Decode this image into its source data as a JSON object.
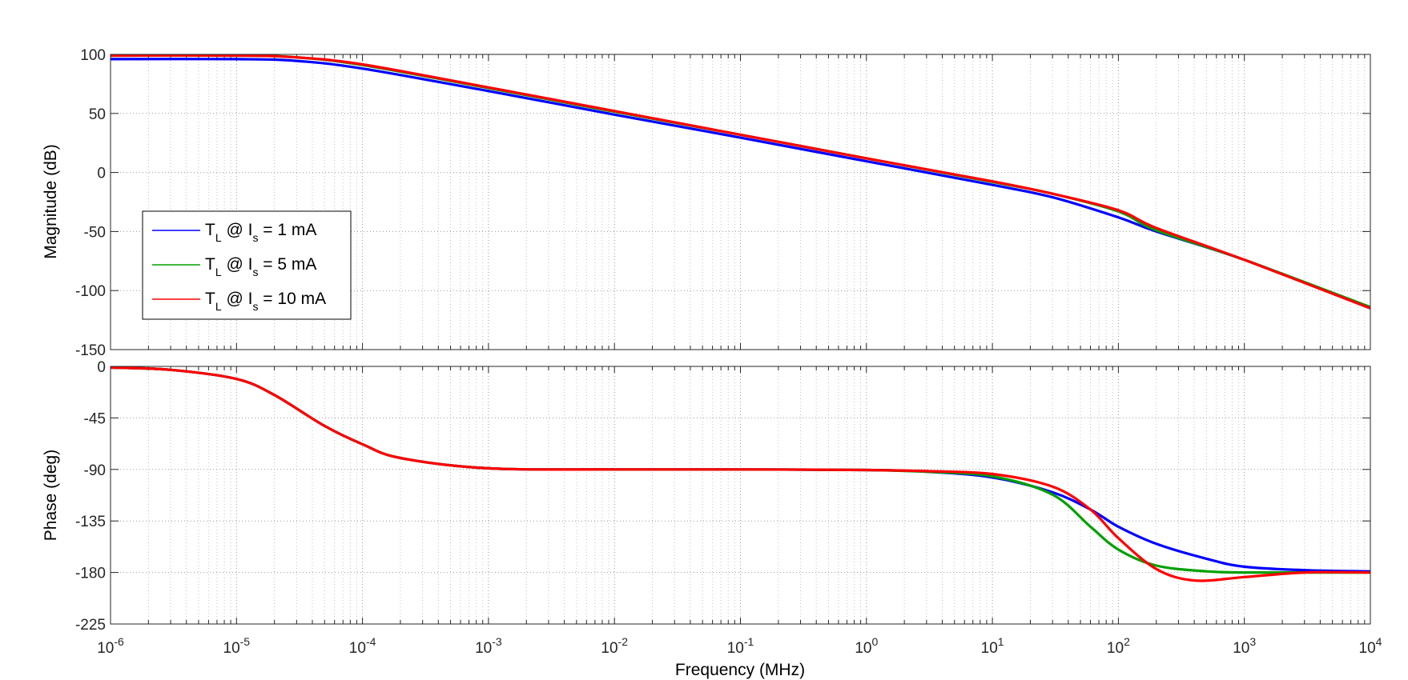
{
  "chart_data": [
    {
      "type": "line",
      "panel": "magnitude",
      "ylabel": "Magnitude (dB)",
      "xlabel": "",
      "xscale": "log",
      "xlim": [
        1e-06,
        10000.0
      ],
      "ylim": [
        -150,
        100
      ],
      "yticks": [
        "100",
        "50",
        "0",
        "-50",
        "-100",
        "-150"
      ],
      "grid": true,
      "legend_position": "left-middle",
      "series": [
        {
          "name": "T_L @ I_s = 1 mA",
          "label_parts": [
            "T",
            "L",
            " @ I",
            "s",
            " = 1 mA"
          ],
          "color": "#0000ff",
          "x": [
            1e-06,
            1e-05,
            3e-05,
            0.0001,
            0.001,
            0.01,
            0.1,
            1,
            10,
            30,
            100,
            200,
            1000,
            10000
          ],
          "y": [
            96,
            96,
            94.5,
            88,
            69,
            49,
            29.5,
            9.5,
            -10.5,
            -21,
            -38,
            -50,
            -74,
            -115
          ]
        },
        {
          "name": "T_L @ I_s = 5 mA",
          "label_parts": [
            "T",
            "L",
            " @ I",
            "s",
            " = 5 mA"
          ],
          "color": "#00a000",
          "x": [
            1e-06,
            1e-05,
            3e-05,
            0.0001,
            0.001,
            0.01,
            0.1,
            1,
            10,
            30,
            100,
            200,
            1000,
            10000
          ],
          "y": [
            99,
            99,
            97.5,
            91,
            71.5,
            51.5,
            32,
            12,
            -8,
            -18,
            -33,
            -49,
            -74,
            -114
          ]
        },
        {
          "name": "T_L @ I_s = 10 mA",
          "label_parts": [
            "T",
            "L",
            " @ I",
            "s",
            " = 10 mA"
          ],
          "color": "#ff0000",
          "x": [
            1e-06,
            1e-05,
            3e-05,
            0.0001,
            0.001,
            0.01,
            0.1,
            1,
            10,
            30,
            100,
            200,
            1000,
            10000
          ],
          "y": [
            99,
            99,
            97.5,
            91.5,
            72,
            52,
            32,
            12,
            -7.5,
            -18,
            -32,
            -47,
            -74,
            -115
          ]
        }
      ]
    },
    {
      "type": "line",
      "panel": "phase",
      "ylabel": "Phase (deg)",
      "xlabel": "Frequency  (MHz)",
      "xscale": "log",
      "xlim": [
        1e-06,
        10000.0
      ],
      "ylim": [
        -225,
        0
      ],
      "yticks": [
        "0",
        "-45",
        "-90",
        "-135",
        "-180",
        "-225"
      ],
      "xticks": [
        "10^-6",
        "10^-5",
        "10^-4",
        "10^-3",
        "10^-2",
        "10^-1",
        "10^0",
        "10^1",
        "10^2",
        "10^3",
        "10^4"
      ],
      "grid": true,
      "series": [
        {
          "name": "T_L @ I_s = 1 mA",
          "color": "#0000ff",
          "x": [
            1e-06,
            3e-06,
            1e-05,
            2e-05,
            5e-05,
            0.0001,
            0.0002,
            0.001,
            0.01,
            0.1,
            1,
            3,
            10,
            30,
            60,
            100,
            200,
            500,
            1000,
            3000,
            10000
          ],
          "y": [
            -1,
            -3,
            -11,
            -25,
            -52,
            -68,
            -80,
            -89,
            -90,
            -90,
            -90.5,
            -92,
            -97,
            -110,
            -125,
            -140,
            -155,
            -168,
            -175,
            -178,
            -179
          ]
        },
        {
          "name": "T_L @ I_s = 5 mA",
          "color": "#00a000",
          "x": [
            1e-06,
            3e-06,
            1e-05,
            2e-05,
            5e-05,
            0.0001,
            0.0002,
            0.001,
            0.01,
            0.1,
            1,
            3,
            10,
            30,
            60,
            100,
            200,
            500,
            1000,
            3000,
            10000
          ],
          "y": [
            -1,
            -3,
            -11,
            -25,
            -52,
            -68,
            -80,
            -89,
            -90,
            -90,
            -90.5,
            -92,
            -96,
            -112,
            -140,
            -160,
            -174,
            -179,
            -180,
            -180,
            -180
          ]
        },
        {
          "name": "T_L @ I_s = 10 mA",
          "color": "#ff0000",
          "x": [
            1e-06,
            3e-06,
            1e-05,
            2e-05,
            5e-05,
            0.0001,
            0.0002,
            0.001,
            0.01,
            0.1,
            1,
            3,
            10,
            30,
            60,
            100,
            200,
            400,
            1000,
            3000,
            10000
          ],
          "y": [
            -1,
            -3,
            -11,
            -25,
            -52,
            -68,
            -80,
            -89,
            -90,
            -90,
            -90.5,
            -91.5,
            -94,
            -105,
            -125,
            -150,
            -177,
            -187,
            -184,
            -180,
            -180
          ]
        }
      ]
    }
  ]
}
